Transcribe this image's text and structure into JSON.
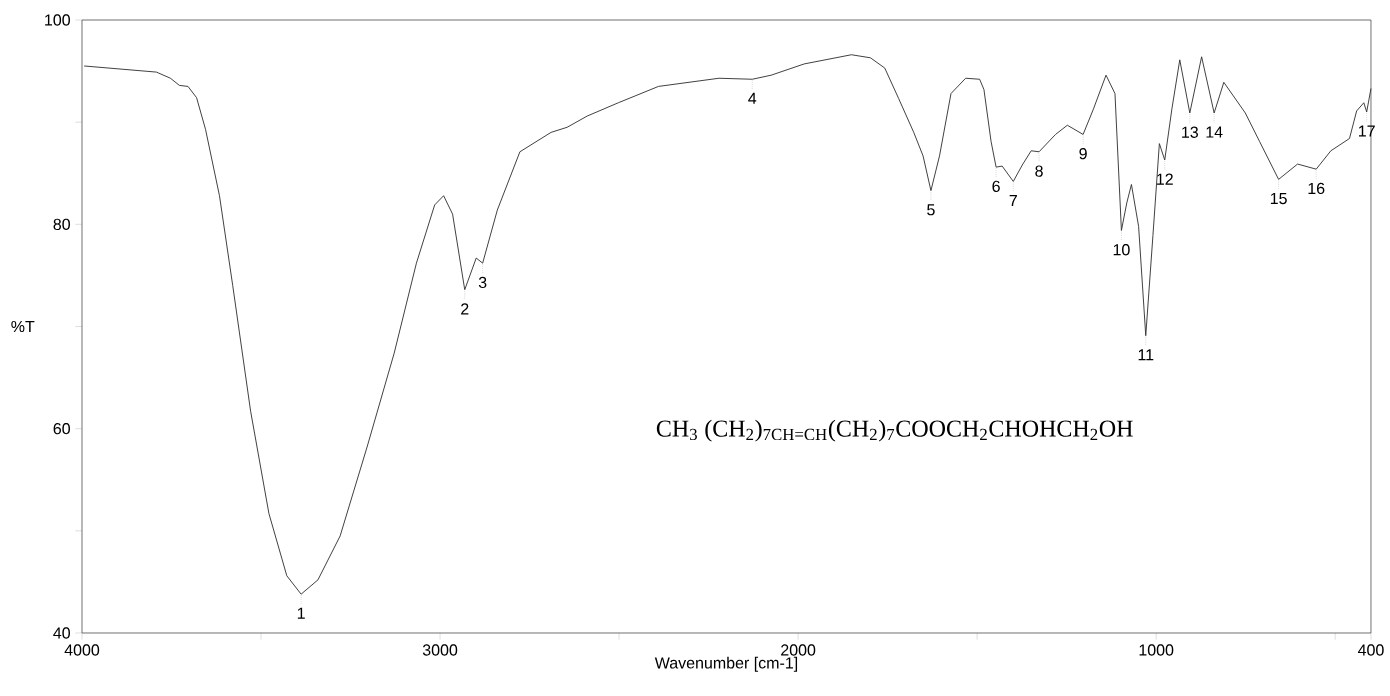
{
  "chart_data": {
    "type": "line",
    "xlabel": "Wavenumber [cm-1]",
    "ylabel": "%T",
    "xlim": [
      4000,
      400
    ],
    "ylim": [
      40,
      100
    ],
    "xticks": [
      4000,
      {
        "value": 3500,
        "label": null
      },
      3000,
      {
        "value": 2500,
        "label": null
      },
      2000,
      {
        "value": 1500,
        "label": null
      },
      1000,
      {
        "value": 500,
        "label": null
      },
      400
    ],
    "yticks": [
      40,
      {
        "value": 50,
        "label": null
      },
      60,
      {
        "value": 70,
        "label": null
      },
      80,
      {
        "value": 90,
        "label": null
      },
      100
    ],
    "grid": false,
    "marker": "none",
    "line_style": "solid",
    "series": [
      {
        "color": "#333333",
        "x": [
          3994,
          3792,
          3753,
          3728,
          3704,
          3680,
          3655,
          3616,
          3579,
          3529,
          3478,
          3428,
          3388,
          3341,
          3279,
          3203,
          3128,
          3066,
          3015,
          2990,
          2965,
          2931,
          2899,
          2881,
          2840,
          2777,
          2690,
          2645,
          2589,
          2502,
          2390,
          2221,
          2128,
          2075,
          1983,
          1851,
          1798,
          1758,
          1719,
          1677,
          1651,
          1629,
          1605,
          1573,
          1532,
          1493,
          1481,
          1461,
          1447,
          1430,
          1399,
          1374,
          1349,
          1327,
          1281,
          1248,
          1204,
          1175,
          1140,
          1115,
          1097,
          1082,
          1069,
          1049,
          1029,
          1009,
          991,
          976,
          956,
          934,
          906,
          873,
          838,
          811,
          751,
          711,
          658,
          605,
          553,
          512,
          460,
          440,
          420,
          412,
          400
        ],
        "values": [
          95.5,
          94.9,
          94.3,
          93.6,
          93.5,
          92.4,
          89.3,
          82.8,
          74.0,
          61.7,
          51.7,
          45.6,
          43.8,
          45.2,
          49.5,
          58.3,
          67.4,
          76.2,
          81.9,
          82.8,
          81.0,
          73.6,
          76.7,
          76.2,
          81.4,
          87.1,
          89.0,
          89.5,
          90.6,
          91.9,
          93.5,
          94.3,
          94.2,
          94.6,
          95.7,
          96.6,
          96.3,
          95.3,
          92.3,
          89.0,
          86.7,
          83.3,
          86.7,
          92.8,
          94.3,
          94.2,
          93.2,
          88.1,
          85.6,
          85.7,
          84.2,
          85.8,
          87.2,
          87.1,
          88.8,
          89.7,
          88.8,
          91.3,
          94.6,
          92.8,
          79.4,
          82.1,
          83.9,
          79.8,
          69.1,
          78.9,
          87.9,
          86.3,
          91.3,
          96.1,
          90.9,
          96.4,
          90.9,
          93.9,
          90.9,
          88.1,
          84.4,
          85.9,
          85.4,
          87.2,
          88.4,
          91.1,
          91.9,
          91.0,
          93.3
        ]
      }
    ],
    "annotations": [
      {
        "text": "1",
        "x": 3388,
        "y": 43.8
      },
      {
        "text": "2",
        "x": 2931,
        "y": 73.6
      },
      {
        "text": "3",
        "x": 2881,
        "y": 76.2
      },
      {
        "text": "4",
        "x": 2128,
        "y": 94.2
      },
      {
        "text": "5",
        "x": 1629,
        "y": 83.3
      },
      {
        "text": "6",
        "x": 1447,
        "y": 85.6
      },
      {
        "text": "7",
        "x": 1399,
        "y": 84.2
      },
      {
        "text": "8",
        "x": 1327,
        "y": 87.1
      },
      {
        "text": "9",
        "x": 1204,
        "y": 88.8
      },
      {
        "text": "10",
        "x": 1097,
        "y": 79.4
      },
      {
        "text": "11",
        "x": 1029,
        "y": 69.1
      },
      {
        "text": "12",
        "x": 976,
        "y": 86.3
      },
      {
        "text": "13",
        "x": 906,
        "y": 90.9
      },
      {
        "text": "14",
        "x": 838,
        "y": 90.9
      },
      {
        "text": "15",
        "x": 658,
        "y": 84.4
      },
      {
        "text": "16",
        "x": 553,
        "y": 85.4
      },
      {
        "text": "17",
        "x": 412,
        "y": 91.0
      },
      "CH$_{3}$ (CH$_{2}$)$_{7CH=CH}$(CH$_{2}$)$_{7}$COOCH$_{2}$CHOHCH$_{2}$OH"
    ]
  }
}
